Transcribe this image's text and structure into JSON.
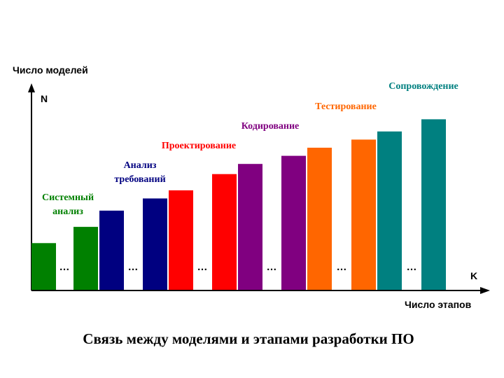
{
  "chart_data": {
    "type": "bar",
    "title": "Связь между моделями и этапами разработки ПО",
    "ylabel": "Число моделей",
    "xlabel": "Число этапов",
    "y_axis_symbol": "N",
    "x_axis_symbol": "K",
    "ellipsis": "…",
    "grid": false,
    "ylim": [
      0,
      100
    ],
    "colors": {
      "system_analysis": "#008000",
      "requirements": "#000080",
      "design": "#ff0000",
      "coding": "#800080",
      "testing": "#ff6600",
      "maintenance": "#008080",
      "axis": "#000000"
    },
    "stage_labels": [
      {
        "text_lines": [
          "Системный",
          "анализ"
        ],
        "color": "#008000"
      },
      {
        "text_lines": [
          "Анализ",
          "требований"
        ],
        "color": "#000080"
      },
      {
        "text_lines": [
          "Проектирование"
        ],
        "color": "#ff0000"
      },
      {
        "text_lines": [
          "Кодирование"
        ],
        "color": "#800080"
      },
      {
        "text_lines": [
          "Тестирование"
        ],
        "color": "#ff6600"
      },
      {
        "text_lines": [
          "Сопровождение"
        ],
        "color": "#008080"
      }
    ],
    "groups": [
      {
        "bars": [
          {
            "value": 23,
            "color": "#008000"
          }
        ]
      },
      {
        "bars": [
          {
            "value": 31,
            "color": "#008000"
          },
          {
            "value": 39,
            "color": "#000080"
          }
        ]
      },
      {
        "bars": [
          {
            "value": 45,
            "color": "#000080"
          },
          {
            "value": 49,
            "color": "#ff0000"
          }
        ]
      },
      {
        "bars": [
          {
            "value": 57,
            "color": "#ff0000"
          },
          {
            "value": 62,
            "color": "#800080"
          }
        ]
      },
      {
        "bars": [
          {
            "value": 66,
            "color": "#800080"
          },
          {
            "value": 70,
            "color": "#ff6600"
          }
        ]
      },
      {
        "bars": [
          {
            "value": 74,
            "color": "#ff6600"
          },
          {
            "value": 78,
            "color": "#008080"
          }
        ]
      },
      {
        "bars": [
          {
            "value": 84,
            "color": "#008080"
          }
        ]
      }
    ]
  }
}
